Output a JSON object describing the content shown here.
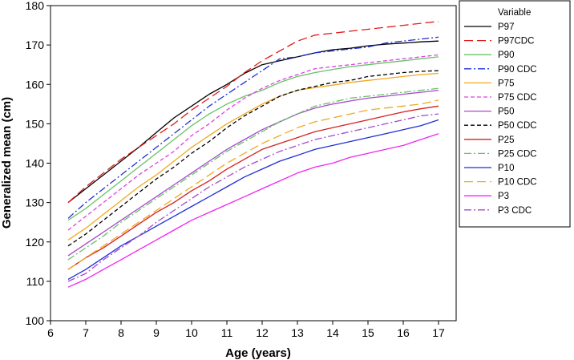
{
  "chart_data": {
    "type": "line",
    "xlabel": "Age (years)",
    "ylabel": "Generalized mean (cm)",
    "xlim": [
      6,
      17.5
    ],
    "ylim": [
      100,
      180
    ],
    "xticks": [
      6,
      7,
      8,
      9,
      10,
      11,
      12,
      13,
      14,
      15,
      16,
      17
    ],
    "yticks": [
      100,
      110,
      120,
      130,
      140,
      150,
      160,
      170,
      180
    ],
    "grid": false,
    "legend": {
      "title": "Variable",
      "placement": "right"
    },
    "x": [
      6.5,
      7,
      7.5,
      8,
      8.5,
      9,
      9.5,
      10,
      10.5,
      11,
      11.5,
      12,
      12.5,
      13,
      13.5,
      14,
      14.5,
      15,
      15.5,
      16,
      16.5,
      17
    ],
    "series": [
      {
        "name": "P97",
        "color": "#000000",
        "dash": "solid",
        "values": [
          130.0,
          133.5,
          137.0,
          140.5,
          144.0,
          147.8,
          151.5,
          154.5,
          157.5,
          160.0,
          162.8,
          165.0,
          166.0,
          167.0,
          168.0,
          168.8,
          169.2,
          169.8,
          170.2,
          170.5,
          170.8,
          171.0
        ]
      },
      {
        "name": "P97CDC",
        "color": "#e41a1c",
        "dash": "long",
        "values": [
          130.0,
          134.0,
          137.5,
          141.0,
          144.0,
          147.0,
          150.0,
          153.5,
          156.5,
          159.5,
          163.0,
          166.0,
          168.5,
          171.0,
          172.5,
          173.0,
          173.5,
          174.0,
          174.5,
          175.0,
          175.5,
          176.0
        ]
      },
      {
        "name": "P90",
        "color": "#66c266",
        "dash": "solid",
        "values": [
          125.5,
          128.5,
          132.0,
          135.5,
          139.0,
          142.5,
          146.0,
          149.5,
          152.5,
          155.0,
          157.0,
          158.5,
          160.5,
          162.0,
          163.0,
          163.8,
          164.5,
          165.0,
          165.5,
          166.0,
          166.5,
          167.0
        ]
      },
      {
        "name": "P90 CDC",
        "color": "#1f2fd8",
        "dash": "dashdot",
        "values": [
          126.0,
          130.0,
          133.5,
          137.0,
          140.5,
          144.0,
          147.5,
          151.0,
          154.5,
          157.5,
          160.5,
          163.5,
          166.5,
          167.0,
          168.0,
          168.5,
          169.0,
          169.5,
          170.5,
          171.0,
          171.5,
          172.0
        ]
      },
      {
        "name": "P75",
        "color": "#f0a820",
        "dash": "solid",
        "values": [
          120.5,
          123.5,
          127.0,
          130.5,
          134.0,
          137.0,
          140.5,
          144.0,
          147.0,
          150.0,
          152.5,
          155.0,
          157.0,
          158.5,
          159.2,
          159.8,
          160.5,
          161.0,
          161.5,
          162.0,
          162.5,
          162.8
        ]
      },
      {
        "name": "P75 CDC",
        "color": "#e040e0",
        "dash": "short",
        "values": [
          123.0,
          126.5,
          130.0,
          133.5,
          137.0,
          140.0,
          143.0,
          147.0,
          150.0,
          153.5,
          156.5,
          159.0,
          161.0,
          162.5,
          164.0,
          164.5,
          165.0,
          165.5,
          166.0,
          166.5,
          167.0,
          167.5
        ]
      },
      {
        "name": "P50",
        "color": "#a64ac9",
        "dash": "solid",
        "values": [
          116.5,
          119.5,
          122.5,
          125.5,
          128.5,
          131.5,
          134.5,
          137.5,
          140.5,
          143.5,
          146.0,
          148.5,
          150.5,
          152.5,
          154.0,
          155.0,
          155.8,
          156.5,
          157.0,
          157.5,
          158.0,
          158.5
        ]
      },
      {
        "name": "P50 CDC",
        "color": "#000000",
        "dash": "short",
        "values": [
          119.0,
          122.0,
          125.5,
          129.0,
          132.5,
          136.0,
          139.0,
          142.5,
          145.5,
          149.0,
          152.0,
          154.5,
          157.0,
          158.5,
          159.5,
          160.5,
          161.0,
          162.0,
          162.5,
          163.0,
          163.3,
          163.5
        ]
      },
      {
        "name": "P25",
        "color": "#d62020",
        "dash": "solid",
        "values": [
          113.0,
          116.0,
          118.5,
          121.5,
          124.5,
          127.5,
          130.0,
          133.0,
          135.5,
          138.5,
          141.0,
          143.5,
          145.0,
          146.5,
          148.0,
          149.0,
          150.0,
          151.0,
          152.0,
          153.0,
          153.8,
          154.5
        ]
      },
      {
        "name": "P25 CDC",
        "color": "#66c266",
        "dash": "dashdot",
        "values": [
          115.5,
          118.5,
          121.5,
          125.0,
          128.0,
          131.0,
          134.0,
          137.0,
          140.0,
          143.0,
          145.5,
          148.0,
          150.5,
          152.5,
          154.5,
          155.5,
          156.5,
          157.0,
          157.5,
          158.0,
          158.5,
          159.0
        ]
      },
      {
        "name": "P10",
        "color": "#1f2fd8",
        "dash": "solid",
        "values": [
          110.5,
          113.0,
          116.0,
          119.0,
          121.5,
          124.0,
          126.5,
          129.0,
          131.5,
          134.0,
          136.5,
          138.5,
          140.5,
          142.0,
          143.5,
          144.5,
          145.5,
          146.5,
          147.5,
          148.5,
          149.5,
          151.0
        ]
      },
      {
        "name": "P10 CDC",
        "color": "#f0a820",
        "dash": "long",
        "values": [
          113.0,
          116.0,
          119.0,
          122.0,
          125.0,
          128.0,
          131.0,
          134.0,
          137.0,
          140.0,
          142.5,
          145.0,
          147.0,
          149.0,
          150.5,
          151.5,
          152.5,
          153.5,
          154.0,
          154.5,
          155.0,
          156.0
        ]
      },
      {
        "name": "P3",
        "color": "#f024f0",
        "dash": "solid",
        "values": [
          108.5,
          110.5,
          113.0,
          115.5,
          118.0,
          120.5,
          123.0,
          125.5,
          127.5,
          129.5,
          131.5,
          133.5,
          135.5,
          137.5,
          139.0,
          140.0,
          141.5,
          142.5,
          143.5,
          144.5,
          146.0,
          147.5
        ]
      },
      {
        "name": "P3 CDC",
        "color": "#a64ac9",
        "dash": "dashdot",
        "values": [
          110.0,
          112.0,
          115.5,
          118.5,
          121.5,
          125.0,
          128.0,
          131.0,
          134.0,
          136.5,
          139.0,
          141.0,
          143.0,
          144.5,
          146.0,
          147.0,
          148.0,
          149.0,
          150.0,
          151.0,
          152.0,
          152.5
        ]
      }
    ]
  }
}
